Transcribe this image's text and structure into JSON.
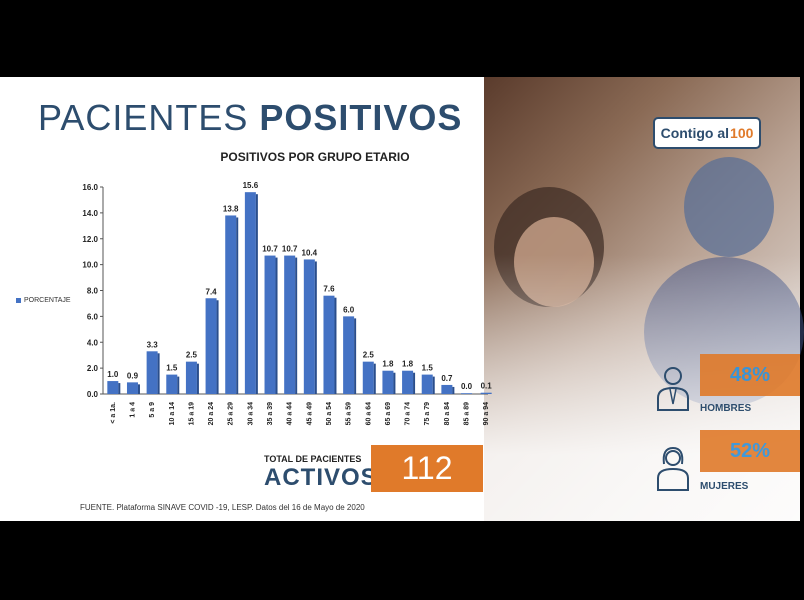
{
  "page": {
    "title_light": "PACIENTES",
    "title_bold": "POSITIVOS",
    "source": "FUENTE. Plataforma SINAVE COVID -19, LESP. Datos del 16 de Mayo de 2020"
  },
  "totals": {
    "label_small": "TOTAL DE PACIENTES",
    "label_big": "ACTIVOS",
    "value": "112"
  },
  "logo": {
    "text_main": "Contigo al",
    "text_suffix": "100"
  },
  "gender": {
    "men": {
      "percent": "48%",
      "label": "HOMBRES",
      "icon": "man-icon"
    },
    "women": {
      "percent": "52%",
      "label": "MUJERES",
      "icon": "woman-icon"
    }
  },
  "colors": {
    "bar": "#4472c4",
    "accent": "#e07a2a",
    "title": "#2d4d6e"
  },
  "chart_data": {
    "type": "bar",
    "title": "POSITIVOS POR GRUPO ETARIO",
    "legend": [
      "PORCENTAJE"
    ],
    "legend_position": "left",
    "ylim": [
      0,
      16
    ],
    "yticks": [
      "0.0",
      "2.0",
      "4.0",
      "6.0",
      "8.0",
      "10.0",
      "12.0",
      "14.0",
      "16.0"
    ],
    "grid": false,
    "categories": [
      "< a 1a.",
      "1 a 4",
      "5 a 9",
      "10 a 14",
      "15 a 19",
      "20 a 24",
      "25 a 29",
      "30 a 34",
      "35 a 39",
      "40 a 44",
      "45 a 49",
      "50 a 54",
      "55 a 59",
      "60 a 64",
      "65 a 69",
      "70 a 74",
      "75 a 79",
      "80 a 84",
      "85 a 89",
      "90 a 94"
    ],
    "series": [
      {
        "name": "PORCENTAJE",
        "values": [
          1.0,
          0.9,
          3.3,
          1.5,
          2.5,
          7.4,
          13.8,
          15.6,
          10.7,
          10.7,
          10.4,
          7.6,
          6.0,
          2.5,
          1.8,
          1.8,
          1.5,
          0.7,
          0.0,
          0.1
        ],
        "labels": [
          "1.0",
          "0.9",
          "3.3",
          "1.5",
          "2.5",
          "7.4",
          "13.8",
          "15.6",
          "10.7",
          "10.7",
          "10.4",
          "7.6",
          "6.0",
          "2.5",
          "1.8",
          "1.8",
          "1.5",
          "0.7",
          "0.0",
          "0.1"
        ]
      }
    ]
  }
}
